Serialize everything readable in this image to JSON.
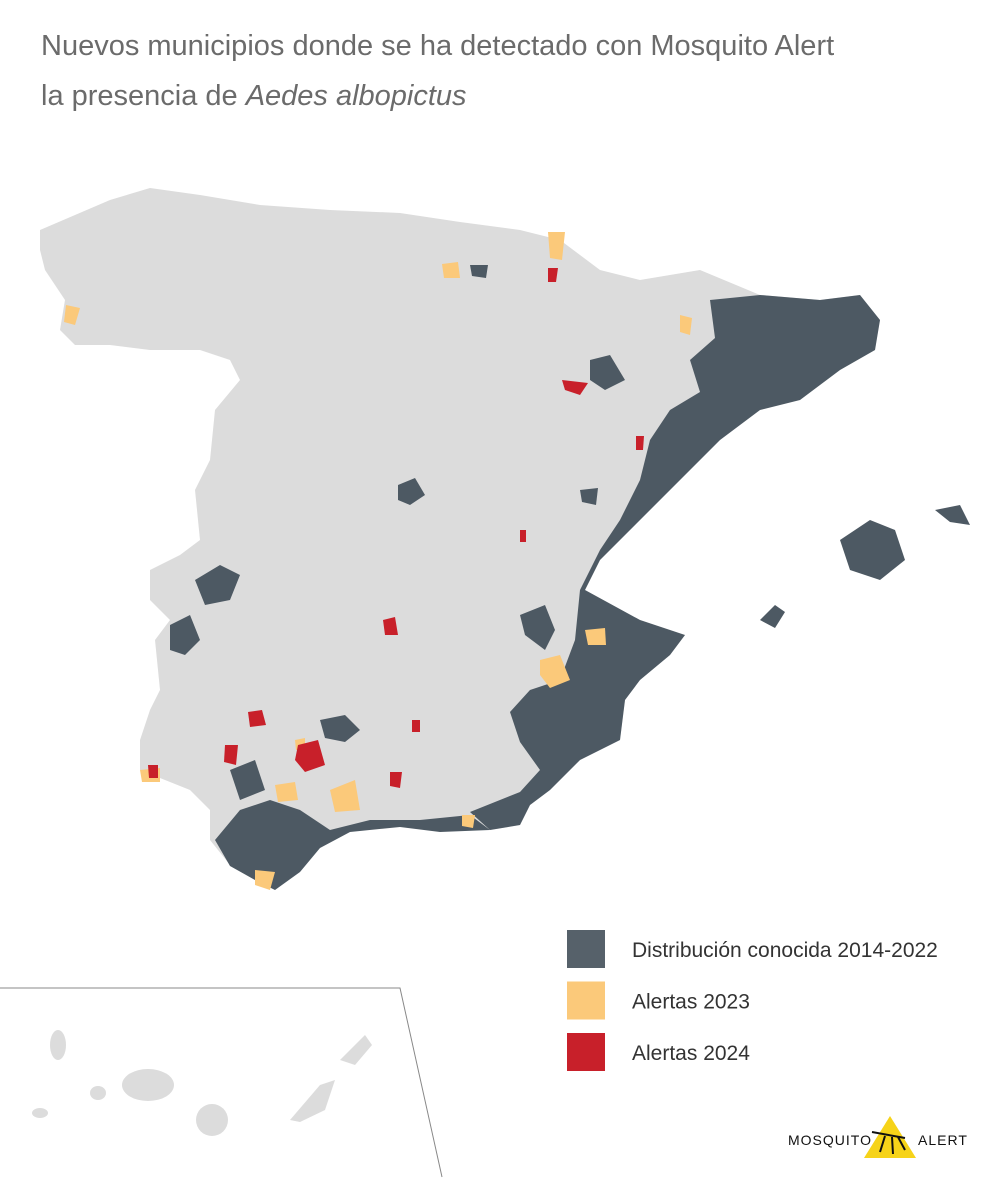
{
  "title": {
    "line1": "Nuevos municipios donde se ha detectado con Mosquito Alert",
    "line2_prefix": "la presencia de",
    "line2_species": "Aedes albopictus"
  },
  "legend": [
    {
      "label": "Distribución conocida 2014-2022",
      "color": "#56616a"
    },
    {
      "label": "Alertas 2023",
      "color": "#fbc97a"
    },
    {
      "label": "Alertas 2024",
      "color": "#c8202a"
    }
  ],
  "logo": {
    "left": "MOSQUITO",
    "right": "ALERT"
  }
}
